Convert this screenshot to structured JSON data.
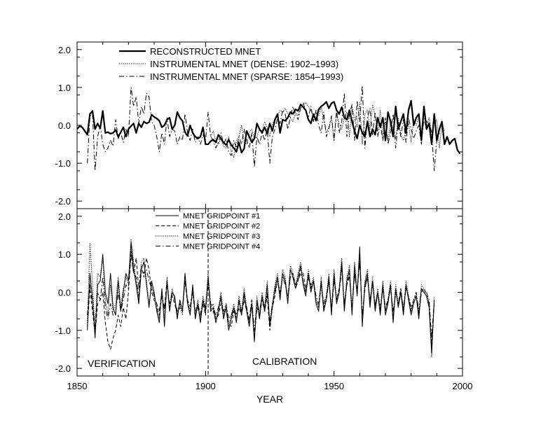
{
  "chart_data": [
    {
      "type": "line",
      "xlim": [
        1850,
        2000
      ],
      "ylim": [
        -2.2,
        2.2
      ],
      "y_ticks": [
        -2.0,
        -1.0,
        0.0,
        1.0,
        2.0
      ],
      "y_tick_labels": [
        "-2.0",
        "-1.0",
        "0.0",
        "1.0",
        "2.0"
      ],
      "grid": false,
      "legend_position": "top-left",
      "series": [
        {
          "name": "RECONSTRUCTED MNET",
          "style": "solid-thick",
          "x_start": 1850,
          "values": [
            -0.1,
            -0.02,
            -0.05,
            -0.15,
            -0.25,
            0.3,
            0.38,
            -0.1,
            0.05,
            -0.08,
            0.38,
            -0.2,
            -0.18,
            -0.22,
            -0.2,
            -0.12,
            -0.3,
            -0.18,
            -0.05,
            -0.3,
            -0.1,
            -0.02,
            0.05,
            -0.2,
            0.05,
            -0.05,
            0.1,
            0.05,
            0.08,
            0.28,
            0.22,
            0.18,
            0.12,
            -0.05,
            0.0,
            0.15,
            0.2,
            -0.1,
            0.0,
            0.35,
            0.2,
            0.12,
            -0.18,
            -0.28,
            0.0,
            -0.2,
            -0.3,
            -0.35,
            -0.3,
            -0.05,
            -0.5,
            -0.5,
            -0.42,
            -0.38,
            -0.45,
            -0.25,
            -0.35,
            -0.45,
            -0.52,
            -0.38,
            -0.52,
            -0.6,
            -0.7,
            -0.45,
            -0.72,
            -0.62,
            -0.15,
            -0.3,
            -0.45,
            -0.35,
            0.05,
            -0.1,
            -0.2,
            -0.05,
            -0.22,
            0.05,
            -0.15,
            0.15,
            0.3,
            -0.2,
            0.15,
            0.12,
            0.2,
            0.35,
            0.3,
            0.42,
            0.38,
            0.55,
            0.48,
            0.4,
            0.15,
            0.05,
            0.3,
            0.12,
            0.42,
            0.5,
            0.55,
            0.62,
            0.45,
            0.58,
            0.62,
            0.4,
            0.3,
            0.48,
            0.2,
            0.15,
            0.4,
            0.1,
            -0.15,
            -0.35,
            0.0,
            -0.2,
            -0.3,
            0.1,
            -0.3,
            -0.1,
            -0.25,
            0.2,
            -0.05,
            0.2,
            -0.4,
            0.35,
            0.1,
            -0.3,
            0.5,
            -0.1,
            0.1,
            0.3,
            -0.2,
            0.4,
            0.65,
            0.0,
            0.2,
            0.3,
            -0.4,
            0.5,
            -0.1,
            0.05,
            -0.5,
            0.3,
            -0.4,
            -0.1,
            0.1,
            -0.5,
            -0.3,
            -0.5,
            -0.4,
            -0.35,
            -0.65,
            -0.75
          ]
        },
        {
          "name": "INSTRUMENTAL MNET (DENSE: 1902–1993)",
          "style": "dotted",
          "x_start": 1902,
          "values": [
            -0.3,
            -0.15,
            -0.42,
            -0.5,
            -0.35,
            -0.55,
            -0.6,
            -0.3,
            -0.7,
            -0.85,
            -0.4,
            -0.3,
            0.0,
            -0.45,
            -0.5,
            -0.2,
            -0.1,
            -0.35,
            -0.3,
            -0.1,
            -0.15,
            0.1,
            -0.05,
            -0.3,
            0.05,
            0.15,
            0.25,
            0.4,
            0.35,
            0.45,
            0.3,
            0.2,
            0.1,
            0.35,
            0.25,
            0.45,
            0.55,
            0.6,
            0.5,
            0.4,
            0.2,
            0.35,
            0.25,
            0.5,
            0.15,
            -0.2,
            -0.05,
            0.2,
            -0.4,
            0.3,
            0.05,
            -0.1,
            0.2,
            0.35,
            -0.3,
            0.5,
            0.15,
            -0.05,
            0.6,
            -0.5,
            0.3,
            0.4,
            -0.1,
            0.55,
            0.25,
            -0.15,
            0.4,
            -0.3,
            0.1,
            -0.45,
            0.15,
            -0.1,
            -0.35,
            0.2,
            -0.25,
            -0.4,
            -0.15,
            0.05,
            -0.45,
            0.15,
            0.0,
            0.25,
            -0.3,
            0.1,
            -0.05,
            0.2,
            -0.2,
            0.1,
            0.15,
            -0.6,
            0.05,
            -0.15
          ]
        },
        {
          "name": "INSTRUMENTAL MNET (SPARSE: 1854–1993)",
          "style": "dashdot",
          "x_start": 1854,
          "values": [
            -1.0,
            0.25,
            0.3,
            -1.2,
            -0.3,
            0.0,
            -0.5,
            -0.7,
            -0.6,
            -0.4,
            -0.55,
            0.15,
            -0.35,
            -0.2,
            -0.45,
            -0.1,
            -0.3,
            1.0,
            0.5,
            0.75,
            0.05,
            0.5,
            0.3,
            0.85,
            0.75,
            0.1,
            0.0,
            -0.3,
            -0.7,
            -0.2,
            -0.5,
            0.2,
            -0.3,
            -0.1,
            -0.15,
            -0.5,
            -0.3,
            -0.4,
            0.3,
            -0.2,
            -0.4,
            -0.1,
            -0.45,
            -0.3,
            -0.5,
            -0.25,
            -0.4,
            0.35,
            -0.3,
            -0.4,
            -0.6,
            -0.45,
            -0.2,
            -0.5,
            -0.35,
            -0.7,
            -0.8,
            -0.4,
            -0.6,
            -0.3,
            -0.5,
            -0.1,
            -0.4,
            -0.6,
            -0.2,
            -1.1,
            -0.3,
            -0.5,
            -0.2,
            -0.4,
            -0.1,
            -1.0,
            -0.3,
            -0.1,
            0.2,
            0.05,
            0.4,
            0.3,
            -0.1,
            0.2,
            0.5,
            0.3,
            0.15,
            0.45,
            0.6,
            0.35,
            0.2,
            0.5,
            0.1,
            0.4,
            0.0,
            -0.2,
            0.35,
            -0.3,
            -0.1,
            0.25,
            -0.4,
            0.4,
            -0.2,
            0.1,
            0.85,
            -0.3,
            0.3,
            0.55,
            -0.4,
            0.65,
            0.1,
            1.05,
            -0.6,
            0.2,
            0.45,
            -0.25,
            0.35,
            -0.3,
            0.05,
            -0.4,
            0.2,
            -0.5,
            -0.2,
            0.3,
            -0.6,
            0.1,
            -0.3,
            0.15,
            -0.45,
            0.2,
            -0.1,
            -0.35,
            -0.15,
            0.0,
            -0.5,
            0.2,
            0.1,
            0.05,
            -0.2,
            -1.2,
            -0.4,
            -0.2
          ]
        }
      ]
    },
    {
      "type": "line",
      "xlim": [
        1850,
        2000
      ],
      "ylim": [
        -2.2,
        2.2
      ],
      "y_ticks": [
        -2.0,
        -1.0,
        0.0,
        1.0,
        2.0
      ],
      "y_tick_labels": [
        "-2.0",
        "-1.0",
        "0.0",
        "1.0",
        "2.0"
      ],
      "x_ticks": [
        1850,
        1900,
        1950,
        2000
      ],
      "x_tick_labels": [
        "1850",
        "1900",
        "1950",
        "2000"
      ],
      "xlabel": "YEAR",
      "grid": false,
      "legend_position": "top-left",
      "boundary_year": 1901,
      "annotations": [
        "VERIFICATION",
        "CALIBRATION"
      ],
      "series": [
        {
          "name": "MNET GRIDPOINT #1",
          "style": "solid",
          "x_start": 1854,
          "values": [
            -1.0,
            0.5,
            -0.2,
            -1.2,
            0.2,
            0.3,
            1.0,
            0.0,
            -0.3,
            0.5,
            -0.4,
            -0.6,
            0.3,
            -0.5,
            0.0,
            0.5,
            0.3,
            1.3,
            0.6,
            0.2,
            -0.3,
            0.6,
            0.8,
            0.2,
            -0.4,
            0.3,
            0.0,
            -0.5,
            -0.8,
            0.1,
            -0.9,
            0.3,
            -0.5,
            0.0,
            -0.1,
            -0.7,
            -0.2,
            -0.5,
            0.5,
            -0.3,
            -0.6,
            0.2,
            -0.7,
            -0.3,
            -0.8,
            -0.2,
            -0.5,
            0.4,
            -0.5,
            -0.4,
            -0.8,
            -0.5,
            -0.1,
            -0.7,
            -0.4,
            -1.0,
            -0.7,
            -0.4,
            -0.8,
            -0.2,
            -0.6,
            0.0,
            -0.5,
            -0.9,
            -0.3,
            -1.3,
            -0.2,
            -0.7,
            -0.1,
            -0.5,
            0.2,
            -0.9,
            -0.4,
            0.1,
            0.4,
            -0.2,
            0.5,
            0.3,
            -0.3,
            0.6,
            0.4,
            0.1,
            0.4,
            0.7,
            0.2,
            -0.1,
            0.5,
            0.0,
            0.3,
            -0.3,
            -0.5,
            0.3,
            -0.5,
            -0.2,
            0.4,
            -0.6,
            0.5,
            -0.3,
            0.0,
            0.8,
            -0.5,
            0.3,
            0.6,
            -0.6,
            0.7,
            -0.1,
            1.2,
            -0.9,
            0.2,
            0.5,
            -0.4,
            0.3,
            -0.5,
            0.0,
            -0.6,
            0.2,
            -0.6,
            -0.3,
            0.2,
            -0.8,
            0.1,
            -0.4,
            0.0,
            -0.6,
            0.2,
            -0.2,
            -0.6,
            -0.3,
            -0.1,
            -0.7,
            0.1,
            0.0,
            -0.1,
            -0.4,
            -1.6,
            -0.2
          ]
        },
        {
          "name": "MNET GRIDPOINT #2",
          "style": "dashed",
          "x_start": 1854,
          "values": [
            -0.9,
            0.1,
            -0.5,
            -1.1,
            -0.3,
            -0.2,
            0.0,
            -0.8,
            -1.3,
            -1.5,
            -1.2,
            -1.0,
            -0.6,
            -0.9,
            -0.4,
            -0.7,
            0.0,
            1.0,
            0.5,
            0.9,
            0.1,
            0.7,
            0.4,
            0.9,
            0.6,
            0.0,
            -0.2,
            -0.4,
            -0.6,
            -0.1,
            -0.4,
            0.3,
            -0.4,
            -0.1,
            -0.3,
            -0.6,
            -0.4,
            -0.5,
            0.3,
            -0.3,
            -0.5,
            0.0,
            -0.6,
            -0.4,
            -0.7,
            -0.3,
            -0.6,
            0.4,
            -0.4,
            -0.5,
            -0.7,
            -0.6,
            -0.3,
            -0.6,
            -0.4,
            -0.8,
            -0.9,
            -0.5,
            -0.7,
            -0.4,
            -0.6,
            -0.2,
            -0.5,
            -0.8,
            -0.3,
            -1.2,
            -0.4,
            -0.6,
            -0.2,
            -0.5,
            -0.1,
            -1.0,
            -0.4,
            -0.1,
            0.3,
            0.0,
            0.4,
            0.3,
            -0.2,
            0.4,
            0.5,
            0.2,
            0.3,
            0.6,
            0.5,
            0.1,
            0.4,
            0.2,
            0.3,
            -0.2,
            -0.4,
            0.2,
            -0.4,
            -0.2,
            0.3,
            -0.5,
            0.3,
            -0.2,
            0.1,
            0.7,
            -0.4,
            0.2,
            0.5,
            -0.5,
            0.5,
            0.0,
            0.9,
            -0.7,
            0.1,
            0.4,
            -0.3,
            0.3,
            -0.4,
            0.0,
            -0.5,
            0.1,
            -0.5,
            -0.2,
            0.2,
            -0.6,
            0.0,
            -0.3,
            0.1,
            -0.5,
            0.1,
            -0.1,
            -0.5,
            -0.2,
            -0.1,
            -0.6,
            0.0,
            0.1,
            -0.1,
            -0.3,
            -1.4,
            -0.3
          ]
        },
        {
          "name": "MNET GRIDPOINT #3",
          "style": "dotted",
          "x_start": 1854,
          "values": [
            -0.8,
            1.3,
            0.2,
            -1.0,
            0.5,
            0.4,
            0.9,
            -0.2,
            -0.6,
            0.2,
            -0.5,
            -0.3,
            0.4,
            -0.4,
            0.1,
            0.4,
            0.2,
            1.4,
            0.8,
            0.3,
            -0.2,
            0.8,
            0.9,
            0.3,
            -0.3,
            0.2,
            -0.1,
            -0.4,
            -0.7,
            0.0,
            -0.7,
            0.4,
            -0.4,
            0.1,
            -0.2,
            -0.6,
            -0.3,
            -0.6,
            0.4,
            -0.2,
            -0.5,
            0.1,
            -0.6,
            -0.2,
            -0.7,
            -0.1,
            -0.4,
            0.5,
            -0.4,
            -0.3,
            -0.7,
            -0.4,
            0.0,
            -0.6,
            -0.3,
            -0.9,
            -0.6,
            -0.3,
            -0.7,
            -0.1,
            -0.5,
            0.1,
            -0.4,
            -0.8,
            -0.2,
            -1.2,
            -0.1,
            -0.6,
            0.0,
            -0.4,
            0.3,
            -0.8,
            -0.3,
            0.2,
            0.5,
            -0.1,
            0.6,
            0.4,
            -0.2,
            0.7,
            0.5,
            0.2,
            0.5,
            0.8,
            0.3,
            0.0,
            0.6,
            0.1,
            0.4,
            -0.2,
            -0.4,
            0.4,
            -0.4,
            -0.1,
            0.5,
            -0.5,
            0.6,
            -0.2,
            0.1,
            0.9,
            -0.4,
            0.4,
            0.7,
            -0.5,
            0.8,
            0.0,
            1.1,
            -0.8,
            0.3,
            0.6,
            -0.3,
            0.4,
            -0.4,
            0.1,
            -0.5,
            0.3,
            -0.5,
            -0.2,
            0.3,
            -0.7,
            0.2,
            -0.3,
            0.1,
            -0.5,
            0.3,
            -0.1,
            -0.5,
            -0.2,
            0.0,
            -0.6,
            0.2,
            0.1,
            0.0,
            -0.3,
            -1.7,
            -0.1
          ]
        },
        {
          "name": "MNET GRIDPOINT #4",
          "style": "dashdot",
          "x_start": 1854,
          "values": [
            -0.6,
            0.2,
            -0.3,
            -0.9,
            0.0,
            -0.2,
            0.4,
            -0.4,
            -0.7,
            -0.3,
            -0.6,
            -0.5,
            0.0,
            -0.5,
            -0.2,
            0.2,
            0.1,
            1.1,
            0.5,
            0.4,
            -0.1,
            0.6,
            0.5,
            0.6,
            0.3,
            0.1,
            -0.1,
            -0.3,
            -0.5,
            0.0,
            -0.5,
            0.2,
            -0.3,
            0.0,
            -0.2,
            -0.5,
            -0.3,
            -0.4,
            0.3,
            -0.2,
            -0.4,
            0.1,
            -0.5,
            -0.3,
            -0.6,
            -0.2,
            -0.4,
            0.3,
            -0.3,
            -0.4,
            -0.6,
            -0.4,
            -0.2,
            -0.5,
            -0.3,
            -0.7,
            -0.6,
            -0.4,
            -0.6,
            -0.3,
            -0.5,
            -0.1,
            -0.4,
            -0.7,
            -0.2,
            -1.0,
            -0.3,
            -0.5,
            -0.1,
            -0.4,
            0.0,
            -0.8,
            -0.3,
            0.0,
            0.3,
            0.0,
            0.4,
            0.2,
            -0.1,
            0.4,
            0.4,
            0.1,
            0.3,
            0.5,
            0.3,
            0.0,
            0.4,
            0.1,
            0.3,
            -0.1,
            -0.3,
            0.2,
            -0.3,
            -0.1,
            0.3,
            -0.4,
            0.4,
            -0.2,
            0.0,
            0.6,
            -0.3,
            0.2,
            0.4,
            -0.4,
            0.5,
            0.0,
            0.8,
            -0.6,
            0.1,
            0.4,
            -0.2,
            0.2,
            -0.3,
            0.0,
            -0.4,
            0.1,
            -0.4,
            -0.2,
            0.1,
            -0.5,
            0.0,
            -0.3,
            0.0,
            -0.4,
            0.1,
            -0.1,
            -0.4,
            -0.2,
            0.0,
            -0.5,
            0.1,
            0.0,
            0.0,
            -0.2,
            -1.2,
            -0.2
          ]
        }
      ]
    }
  ]
}
